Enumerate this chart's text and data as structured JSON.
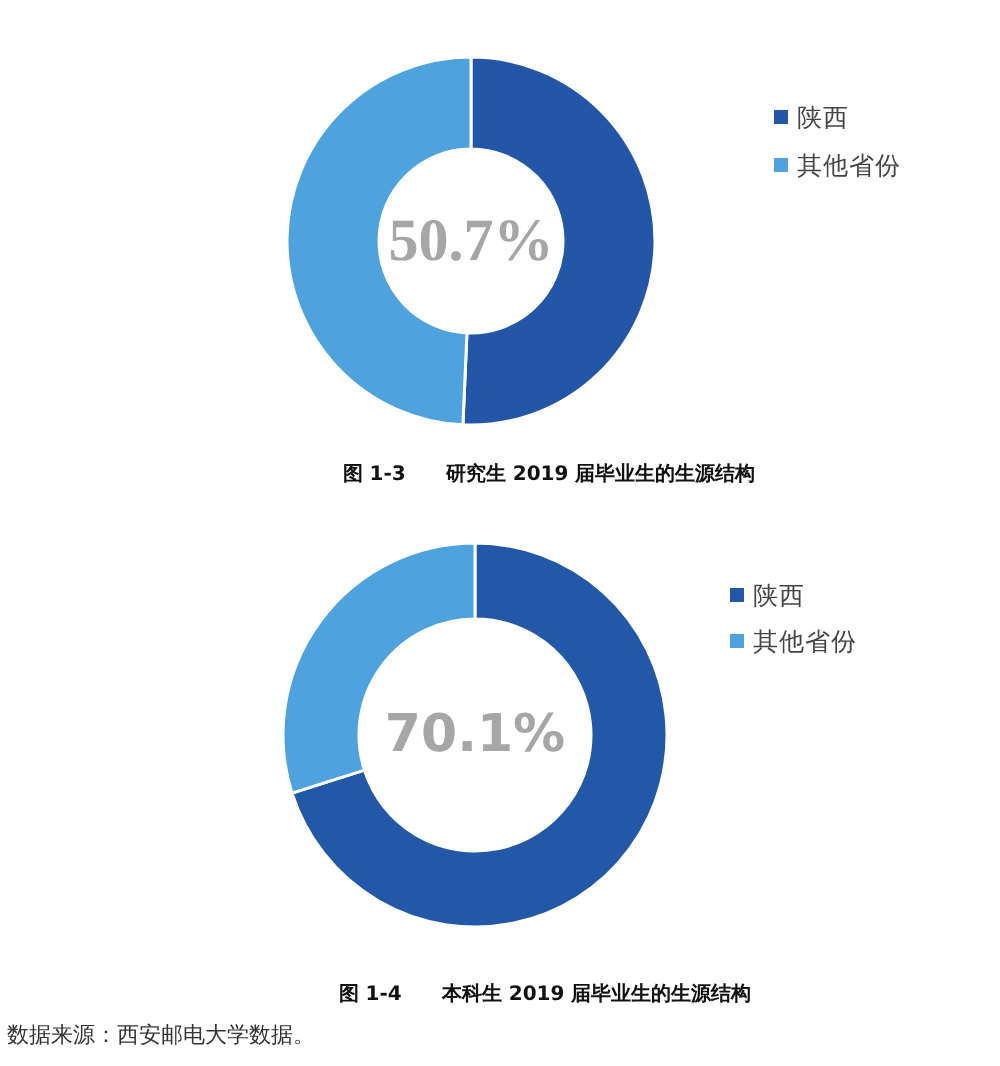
{
  "chart_data": [
    {
      "type": "donut",
      "title": "图 1-3　　研究生 2019 届毕业生的生源结构",
      "categories": [
        "陕西",
        "其他省份"
      ],
      "values": [
        50.7,
        49.3
      ],
      "colors": [
        "#2356a6",
        "#4ea3df"
      ],
      "legend": "top right",
      "annotations": [
        "50.7%"
      ]
    },
    {
      "type": "donut",
      "title": "图 1-4　　本科生 2019 届毕业生的生源结构",
      "categories": [
        "陕西",
        "其他省份"
      ],
      "values": [
        70.1,
        29.9
      ],
      "colors": [
        "#2358a8",
        "#4ea3df"
      ],
      "legend": "top right",
      "annotations": [
        "70.1%",
        "数据来源：西安邮电大学数据。"
      ]
    }
  ]
}
